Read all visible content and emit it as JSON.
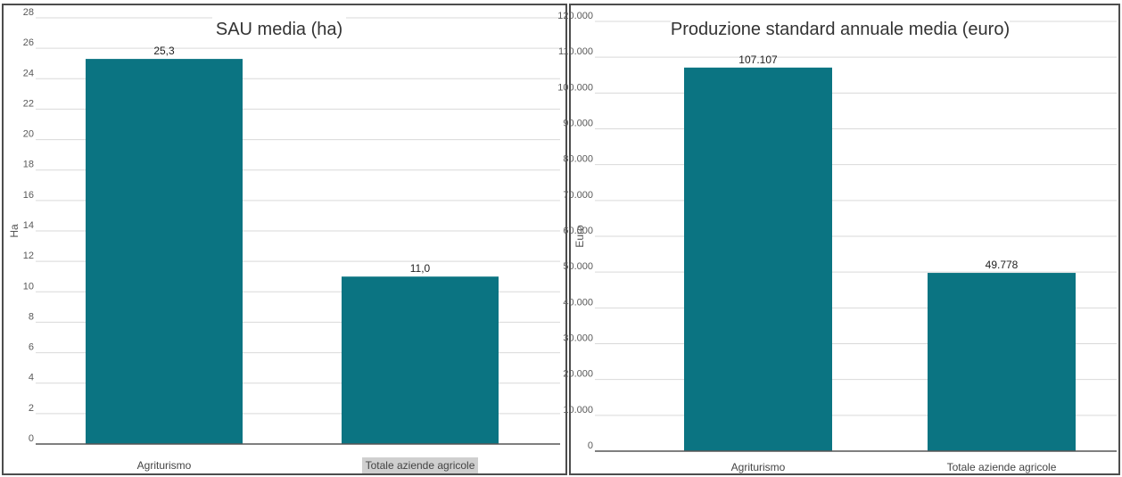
{
  "chart_data": [
    {
      "type": "bar",
      "title": "SAU media (ha)",
      "ylabel": "Ha",
      "xlabel": "",
      "categories": [
        "Agriturismo",
        "Totale aziende agricole"
      ],
      "values": [
        25.3,
        11.0
      ],
      "data_labels": [
        "25,3",
        "11,0"
      ],
      "ylim": [
        0,
        28
      ],
      "yticks": [
        "0",
        "2",
        "4",
        "6",
        "8",
        "10",
        "12",
        "14",
        "16",
        "18",
        "20",
        "22",
        "24",
        "26",
        "28"
      ],
      "highlighted_category": "Totale aziende agricole",
      "grid": true,
      "legend": "none"
    },
    {
      "type": "bar",
      "title": "Produzione standard annuale media (euro)",
      "ylabel": "Euro",
      "xlabel": "",
      "categories": [
        "Agriturismo",
        "Totale aziende agricole"
      ],
      "values": [
        107107,
        49778
      ],
      "data_labels": [
        "107.107",
        "49.778"
      ],
      "ylim": [
        0,
        120000
      ],
      "yticks": [
        "0",
        "10.000",
        "20.000",
        "30.000",
        "40.000",
        "50.000",
        "60.000",
        "70.000",
        "80.000",
        "90.000",
        "100.000",
        "110.000",
        "120.000"
      ],
      "grid": true,
      "legend": "none"
    }
  ],
  "colors": {
    "bar": "#0b7482",
    "grid": "#d9d9d9",
    "axis": "#555555",
    "highlight": "#cfcfcf"
  }
}
